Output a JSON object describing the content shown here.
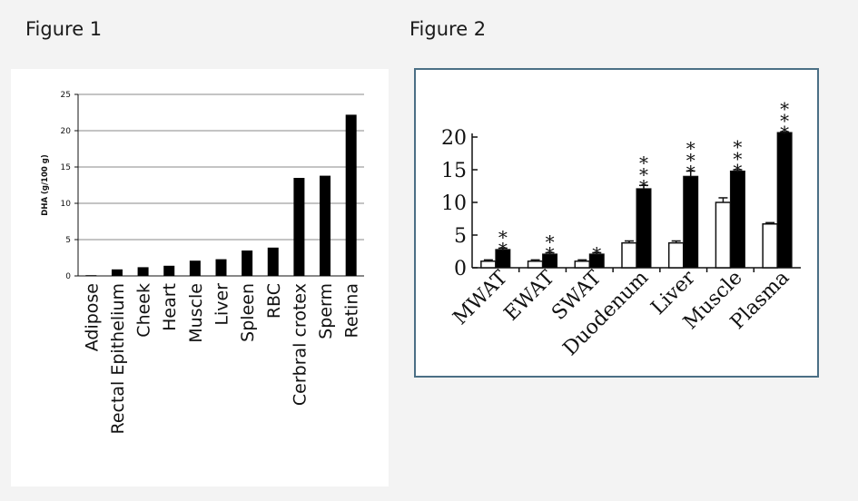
{
  "figure1": {
    "title": "Figure 1",
    "chart_data": {
      "type": "bar",
      "categories": [
        "Adipose",
        "Rectal Epithelium",
        "Cheek",
        "Heart",
        "Muscle",
        "Liver",
        "Spleen",
        "RBC",
        "Cerbral crotex",
        "Sperm",
        "Retina"
      ],
      "values": [
        0.1,
        0.9,
        1.2,
        1.4,
        2.1,
        2.3,
        3.5,
        3.9,
        13.5,
        13.8,
        22.2
      ],
      "ylabel": "DHA (g/100 g)",
      "xlabel": "",
      "ylim": [
        0,
        25
      ],
      "yticks": [
        "0",
        "5",
        "10",
        "15",
        "20",
        "25"
      ],
      "grid": true,
      "bar_color": "#000000"
    }
  },
  "figure2": {
    "title": "Figure 2",
    "chart_data": {
      "type": "bar",
      "categories": [
        "MWAT",
        "EWAT",
        "SWAT",
        "Duodenum",
        "Liver",
        "Muscle",
        "Plasma"
      ],
      "series": [
        {
          "values": [
            1.0,
            1.0,
            1.0,
            3.8,
            3.8,
            10.0,
            6.7
          ],
          "errors": [
            0.2,
            0.2,
            0.2,
            0.3,
            0.3,
            0.7,
            0.2
          ],
          "fill": "#ffffff"
        },
        {
          "values": [
            2.8,
            2.1,
            2.1,
            12.1,
            14.0,
            14.8,
            20.7
          ],
          "errors": [
            0.2,
            0.2,
            0.2,
            0.5,
            0.8,
            0.2,
            0.1
          ],
          "fill": "#000000"
        }
      ],
      "significance": [
        "**",
        "**",
        "*",
        "***",
        "***",
        "***",
        "***"
      ],
      "ylim": [
        0,
        20
      ],
      "yticks": [
        "0",
        "5",
        "10",
        "15",
        "20"
      ],
      "grid": false,
      "xlabel": "",
      "ylabel": ""
    }
  }
}
